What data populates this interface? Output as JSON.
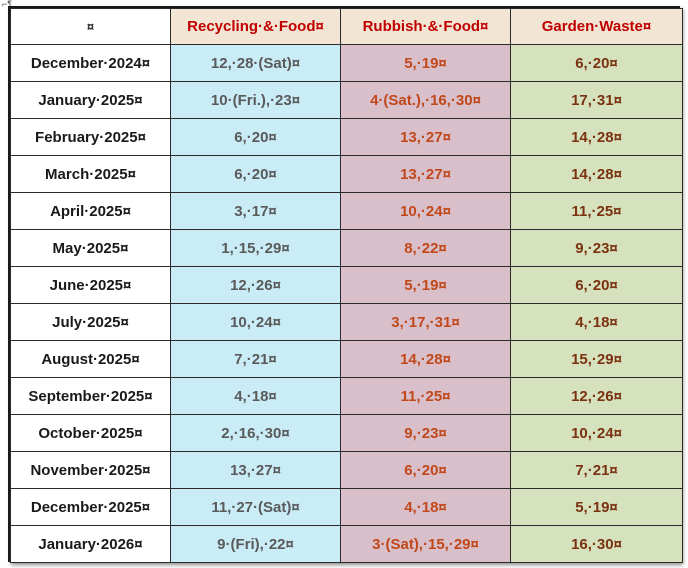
{
  "header": {
    "corner": "¤",
    "recycling": "Recycling·&·Food¤",
    "rubbish": "Rubbish·&·Food¤",
    "garden": "Garden·Waste¤"
  },
  "colors": {
    "header_text": "#c00000",
    "recycling_text": "#5a5a5a",
    "rubbish_text": "#c0481a",
    "garden_text": "#7a3210",
    "recycling_bg": "#c9ecf6",
    "rubbish_bg": "#d9bfca",
    "garden_bg": "#d6e2bd",
    "header_bg": "#f2e5d4"
  },
  "rows": [
    {
      "month": "December·2024¤",
      "recycling": "12,·28·(Sat)¤",
      "rubbish": "5,·19¤",
      "garden": "6,·20¤"
    },
    {
      "month": "January·2025¤",
      "recycling": "10·(Fri.),·23¤",
      "rubbish": "4·(Sat.),·16,·30¤",
      "garden": "17,·31¤"
    },
    {
      "month": "February·2025¤",
      "recycling": "6,·20¤",
      "rubbish": "13,·27¤",
      "garden": "14,·28¤"
    },
    {
      "month": "March·2025¤",
      "recycling": "6,·20¤",
      "rubbish": "13,·27¤",
      "garden": "14,·28¤"
    },
    {
      "month": "April·2025¤",
      "recycling": "3,·17¤",
      "rubbish": "10,·24¤",
      "garden": "11,·25¤"
    },
    {
      "month": "May·2025¤",
      "recycling": "1,·15,·29¤",
      "rubbish": "8,·22¤",
      "garden": "9,·23¤"
    },
    {
      "month": "June·2025¤",
      "recycling": "12,·26¤",
      "rubbish": "5,·19¤",
      "garden": "6,·20¤"
    },
    {
      "month": "July·2025¤",
      "recycling": "10,·24¤",
      "rubbish": "3,·17,·31¤",
      "garden": "4,·18¤"
    },
    {
      "month": "August·2025¤",
      "recycling": "7,·21¤",
      "rubbish": "14,·28¤",
      "garden": "15,·29¤"
    },
    {
      "month": "September·2025¤",
      "recycling": "4,·18¤",
      "rubbish": "11,·25¤",
      "garden": "12,·26¤"
    },
    {
      "month": "October·2025¤",
      "recycling": "2,·16,·30¤",
      "rubbish": "9,·23¤",
      "garden": "10,·24¤"
    },
    {
      "month": "November·2025¤",
      "recycling": "13,·27¤",
      "rubbish": "6,·20¤",
      "garden": "7,·21¤"
    },
    {
      "month": "December·2025¤",
      "recycling": "11,·27·(Sat)¤",
      "rubbish": "4,·18¤",
      "garden": "5,·19¤"
    },
    {
      "month": "January·2026¤",
      "recycling": "9·(Fri),·22¤",
      "rubbish": "3·(Sat),·15,·29¤",
      "garden": "16,·30¤"
    }
  ]
}
